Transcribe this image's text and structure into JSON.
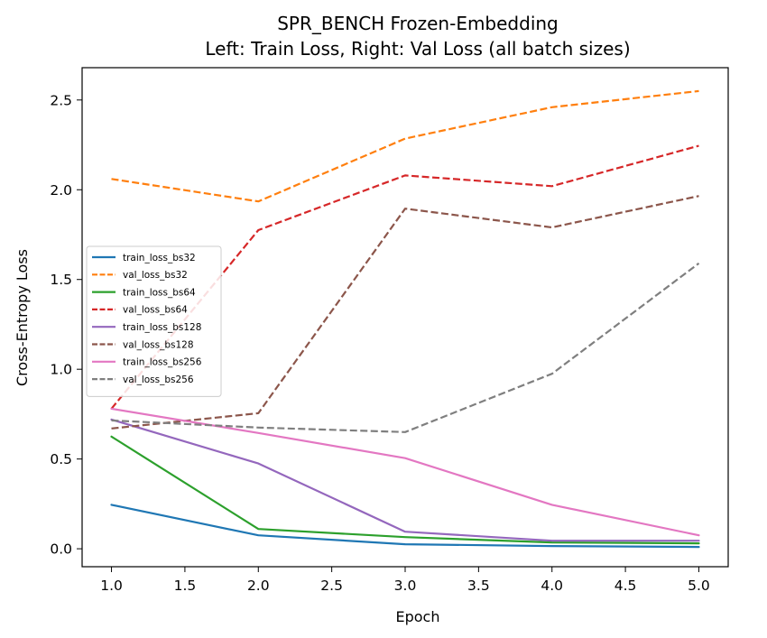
{
  "chart_data": {
    "type": "line",
    "title": "SPR_BENCH Frozen-Embedding",
    "subtitle": "Left: Train Loss, Right: Val Loss (all batch sizes)",
    "xlabel": "Epoch",
    "ylabel": "Cross-Entropy Loss",
    "xlim": [
      0.8,
      5.2
    ],
    "ylim": [
      -0.1,
      2.68
    ],
    "x_ticks": [
      1.0,
      1.5,
      2.0,
      2.5,
      3.0,
      3.5,
      4.0,
      4.5,
      5.0
    ],
    "x_tick_labels": [
      "1.0",
      "1.5",
      "2.0",
      "2.5",
      "3.0",
      "3.5",
      "4.0",
      "4.5",
      "5.0"
    ],
    "y_ticks": [
      0.0,
      0.5,
      1.0,
      1.5,
      2.0,
      2.5
    ],
    "y_tick_labels": [
      "0.0",
      "0.5",
      "1.0",
      "1.5",
      "2.0",
      "2.5"
    ],
    "grid": false,
    "legend_position": "center-left",
    "x": [
      1,
      2,
      3,
      4,
      5
    ],
    "series": [
      {
        "name": "train_loss_bs32",
        "values": [
          0.245,
          0.075,
          0.025,
          0.015,
          0.01
        ],
        "color": "#1f77b4",
        "dashed": false
      },
      {
        "name": "val_loss_bs32",
        "values": [
          2.06,
          1.935,
          2.285,
          2.46,
          2.55
        ],
        "color": "#ff7f0e",
        "dashed": true
      },
      {
        "name": "train_loss_bs64",
        "values": [
          0.625,
          0.11,
          0.065,
          0.035,
          0.03
        ],
        "color": "#2ca02c",
        "dashed": false
      },
      {
        "name": "val_loss_bs64",
        "values": [
          0.78,
          1.775,
          2.08,
          2.02,
          2.245
        ],
        "color": "#d62728",
        "dashed": true
      },
      {
        "name": "train_loss_bs128",
        "values": [
          0.72,
          0.475,
          0.095,
          0.045,
          0.045
        ],
        "color": "#9467bd",
        "dashed": false
      },
      {
        "name": "val_loss_bs128",
        "values": [
          0.67,
          0.755,
          1.895,
          1.79,
          1.965
        ],
        "color": "#8c564b",
        "dashed": true
      },
      {
        "name": "train_loss_bs256",
        "values": [
          0.78,
          0.645,
          0.505,
          0.245,
          0.075
        ],
        "color": "#e377c2",
        "dashed": false
      },
      {
        "name": "val_loss_bs256",
        "values": [
          0.715,
          0.675,
          0.65,
          0.975,
          1.59
        ],
        "color": "#7f7f7f",
        "dashed": true
      }
    ]
  }
}
